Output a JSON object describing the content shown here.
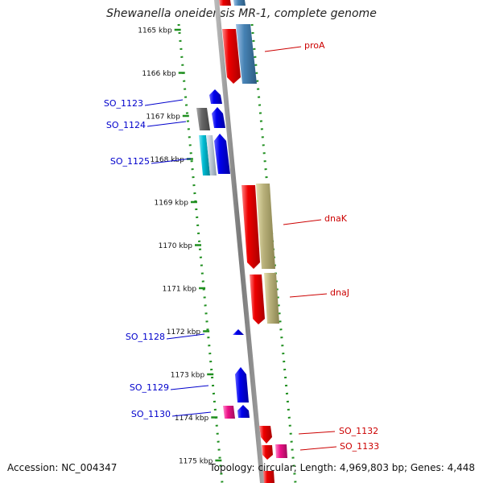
{
  "title": "Shewanella oneidensis MR-1, complete genome",
  "footer": {
    "accession": "Accession: NC_004347",
    "stats": "Topology: circular; Length: 4,969,803 bp; Genes: 4,448"
  },
  "ruler": {
    "ticks": [
      "1165 kbp",
      "1166 kbp",
      "1167 kbp",
      "1168 kbp",
      "1169 kbp",
      "1170 kbp",
      "1171 kbp",
      "1172 kbp",
      "1173 kbp",
      "1174 kbp",
      "1175 kbp"
    ]
  },
  "genes": {
    "left": [
      "SO_1123",
      "SO_1124",
      "SO_1125",
      "SO_1128",
      "SO_1129",
      "SO_1130"
    ],
    "right": [
      "proA",
      "dnaK",
      "dnaJ",
      "SO_1132",
      "SO_1133"
    ]
  },
  "colors": {
    "backbone": "#8c8c8c",
    "ruler": "#1f8f1f",
    "red_gene": "#ee0000",
    "blue_gene": "#0000ee",
    "steel_gene": "#4682b4",
    "khaki_gene": "#b8b07a",
    "magenta_gene": "#ee1188",
    "gray_gene": "#666666",
    "cyan_gene": "#00bcd4",
    "left_label": "#0000cc",
    "right_label": "#cc0000"
  }
}
